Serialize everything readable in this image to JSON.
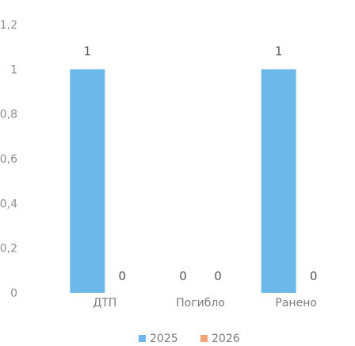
{
  "chart_data": {
    "type": "bar",
    "categories": [
      "ДТП",
      "Погибло",
      "Ранено"
    ],
    "series": [
      {
        "name": "2025",
        "values": [
          1,
          0,
          1
        ],
        "color": "#6CB8EA"
      },
      {
        "name": "2026",
        "values": [
          0,
          0,
          0
        ],
        "color": "#F0A57A"
      }
    ],
    "data_labels": [
      [
        "1",
        "0",
        "1"
      ],
      [
        "0",
        "0",
        "0"
      ]
    ],
    "ylim": [
      0,
      1.2
    ],
    "y_ticks": [
      "0",
      "0,2",
      "0,4",
      "0,6",
      "0,8",
      "1",
      "1,2"
    ],
    "grid": false,
    "legend": "bottom",
    "title": "",
    "xlabel": "",
    "ylabel": ""
  }
}
